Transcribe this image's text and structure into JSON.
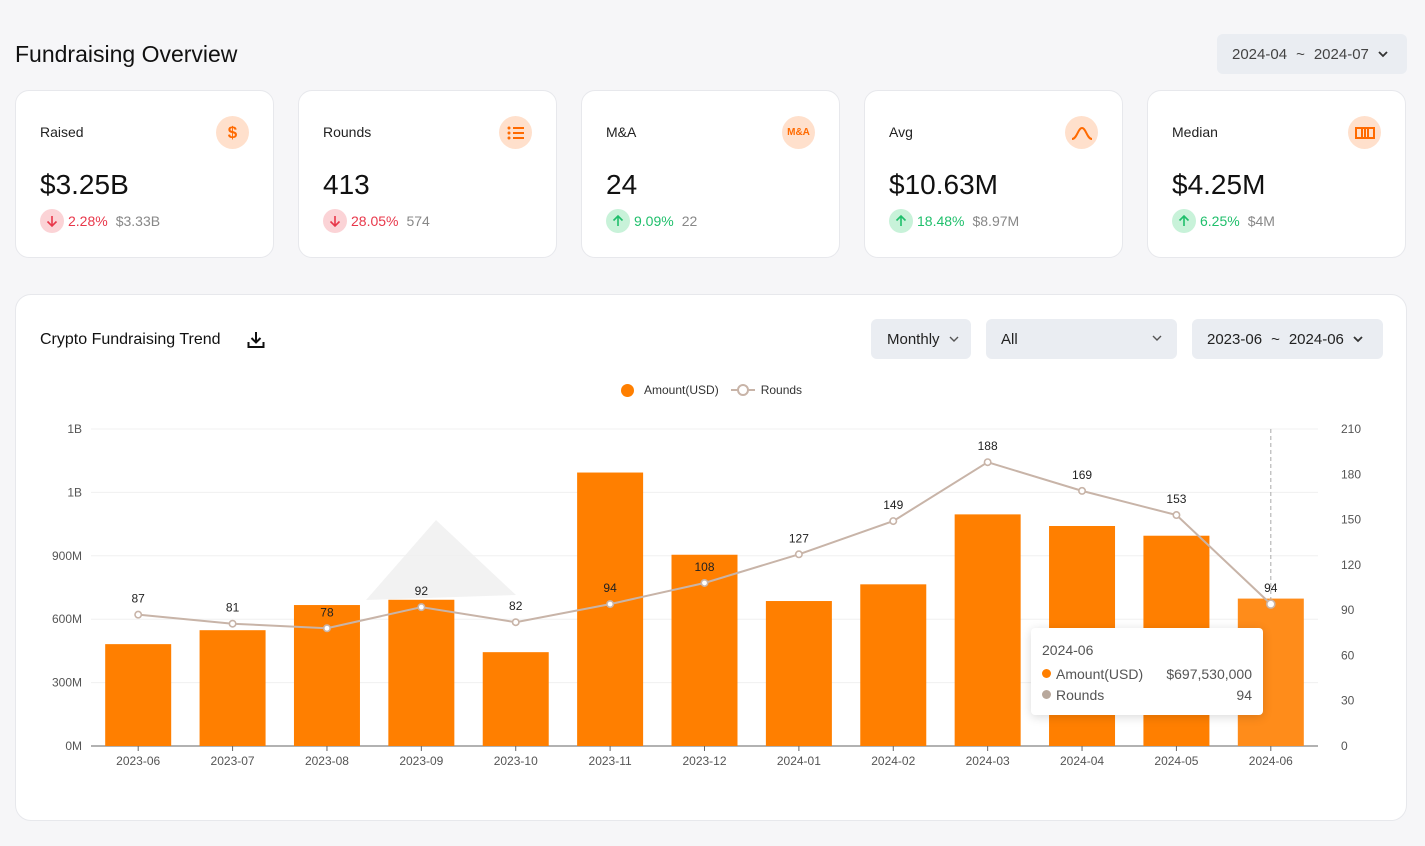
{
  "header": {
    "title": "Fundraising Overview",
    "date_start": "2024-04",
    "date_sep": "~",
    "date_end": "2024-07"
  },
  "stats": [
    {
      "label": "Raised",
      "value": "$3.25B",
      "direction": "down",
      "change": "2.28%",
      "previous": "$3.33B",
      "icon": "dollar-icon"
    },
    {
      "label": "Rounds",
      "value": "413",
      "direction": "down",
      "change": "28.05%",
      "previous": "574",
      "icon": "list-icon"
    },
    {
      "label": "M&A",
      "value": "24",
      "direction": "up",
      "change": "9.09%",
      "previous": "22",
      "icon": "mna-icon",
      "icon_text": "M&A"
    },
    {
      "label": "Avg",
      "value": "$10.63M",
      "direction": "up",
      "change": "18.48%",
      "previous": "$8.97M",
      "icon": "bell-curve-icon"
    },
    {
      "label": "Median",
      "value": "$4.25M",
      "direction": "up",
      "change": "6.25%",
      "previous": "$4M",
      "icon": "median-icon"
    }
  ],
  "trend": {
    "title": "Crypto Fundraising Trend",
    "period_select": "Monthly",
    "category_select": "All",
    "date_start": "2023-06",
    "date_sep": "~",
    "date_end": "2024-06"
  },
  "colors": {
    "bar": "#ff7f00",
    "bar_highlight": "#ff8c1a",
    "line": "#c8b4a8",
    "down": "#e8374a",
    "up": "#1fbf6b"
  },
  "tooltip": {
    "title": "2024-06",
    "rows": [
      {
        "label": "Amount(USD)",
        "value": "$697,530,000",
        "color": "#ff7f00"
      },
      {
        "label": "Rounds",
        "value": "94",
        "color": "#b8a89c"
      }
    ]
  },
  "chart_data": {
    "type": "bar",
    "categories": [
      "2023-06",
      "2023-07",
      "2023-08",
      "2023-09",
      "2023-10",
      "2023-11",
      "2023-12",
      "2024-01",
      "2024-02",
      "2024-03",
      "2024-04",
      "2024-05",
      "2024-06"
    ],
    "series": [
      {
        "name": "Amount(USD)",
        "type": "bar",
        "axis": "left",
        "values": [
          482000000,
          548000000,
          667000000,
          692000000,
          444000000,
          1294000000,
          905000000,
          686000000,
          765000000,
          1096000000,
          1041000000,
          995000000,
          697530000
        ]
      },
      {
        "name": "Rounds",
        "type": "line",
        "axis": "right",
        "values": [
          87,
          81,
          78,
          92,
          82,
          94,
          108,
          127,
          149,
          188,
          169,
          153,
          94
        ]
      }
    ],
    "y_left_ticks": [
      "0M",
      "300M",
      "600M",
      "900M",
      "1B",
      "1B"
    ],
    "y_left_range": [
      0,
      1500000000
    ],
    "y_right_ticks": [
      "0",
      "30",
      "60",
      "90",
      "120",
      "150",
      "180",
      "210"
    ],
    "y_right_range": [
      0,
      210
    ],
    "legend": "top-center",
    "grid": true,
    "highlight_index": 12
  }
}
